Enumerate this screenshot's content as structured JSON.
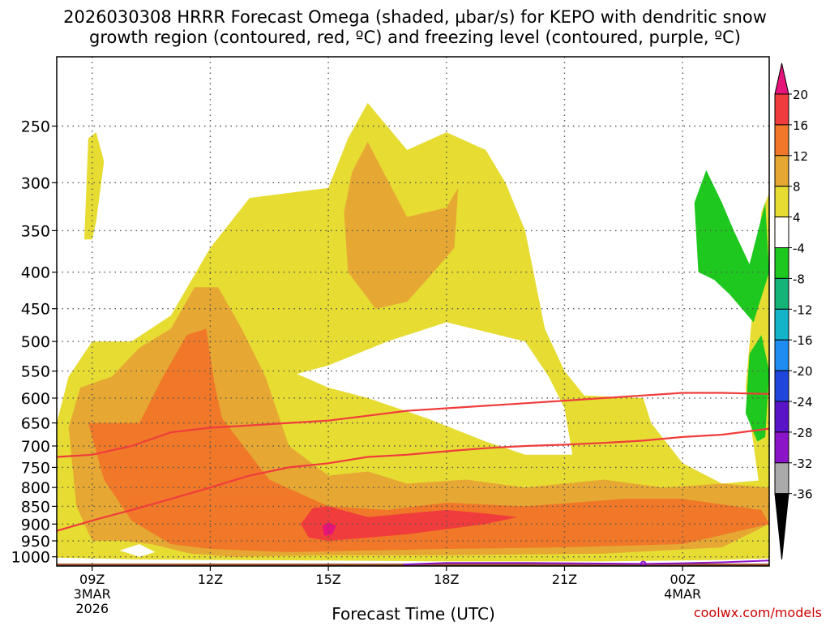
{
  "chart_data": {
    "type": "heatmap",
    "title_lines": [
      "2026030308 HRRR Forecast Omega (shaded, µbar/s) for KEPO with dendritic snow",
      "growth region (contoured, red, ºC) and freezing level (contoured, purple, ºC)"
    ],
    "xlabel": "Forecast Time (UTC)",
    "credit": "coolwx.com/models",
    "x_ticks": [
      {
        "hour": 0,
        "lines": [
          "09Z",
          "3MAR",
          "2026"
        ]
      },
      {
        "hour": 3,
        "lines": [
          "12Z"
        ]
      },
      {
        "hour": 6,
        "lines": [
          "15Z"
        ]
      },
      {
        "hour": 9,
        "lines": [
          "18Z"
        ]
      },
      {
        "hour": 12,
        "lines": [
          "21Z"
        ]
      },
      {
        "hour": 15,
        "lines": [
          "00Z",
          "4MAR"
        ]
      }
    ],
    "x_range_hours": [
      -0.9,
      17.2
    ],
    "y_ticks": [
      250,
      300,
      350,
      400,
      450,
      500,
      550,
      600,
      650,
      700,
      750,
      800,
      850,
      900,
      950,
      1000
    ],
    "y_range_hpa": [
      200,
      1030
    ],
    "y_scale": "log",
    "grid": true,
    "legend_position": "right",
    "colorbar": {
      "labels": [
        "20",
        "16",
        "12",
        "8",
        "4",
        "-4",
        "-8",
        "-12",
        "-16",
        "-20",
        "-24",
        "-28",
        "-32",
        "-36"
      ],
      "band_colors": [
        "#f03c3c",
        "#f07828",
        "#e6a832",
        "#e6dc32",
        "#ffffff",
        "#1ec81e",
        "#14b478",
        "#14b4c8",
        "#1e8cf0",
        "#1e46dc",
        "#5a14c8",
        "#8c14c8",
        "#aaaaaa"
      ],
      "top_arrow_color": "#e6147a",
      "bottom_arrow_color": "#000000"
    },
    "omega_regions": [
      {
        "value_class": "4 to 8",
        "color": "#e6dc32",
        "points": [
          [
            -0.9,
            650
          ],
          [
            -0.6,
            560
          ],
          [
            0,
            500
          ],
          [
            1,
            500
          ],
          [
            2,
            460
          ],
          [
            3,
            370
          ],
          [
            4,
            315
          ],
          [
            6,
            305
          ],
          [
            6.5,
            260
          ],
          [
            7,
            232
          ],
          [
            8,
            270
          ],
          [
            9,
            255
          ],
          [
            10,
            270
          ],
          [
            10.5,
            300
          ],
          [
            11,
            350
          ],
          [
            11.5,
            480
          ],
          [
            12,
            550
          ],
          [
            12.5,
            595
          ],
          [
            14,
            600
          ],
          [
            14.2,
            650
          ],
          [
            15,
            740
          ],
          [
            16,
            790
          ],
          [
            17.2,
            780
          ],
          [
            17.2,
            1005
          ],
          [
            16,
            1010
          ],
          [
            13,
            1015
          ],
          [
            9,
            1015
          ],
          [
            6,
            1012
          ],
          [
            3,
            1010
          ],
          [
            1,
            1008
          ],
          [
            -0.9,
            1003
          ]
        ]
      },
      {
        "value_class": "4 to 8",
        "color": "#e6dc32",
        "points": [
          [
            -0.2,
            360
          ],
          [
            -0.1,
            260
          ],
          [
            0.1,
            255
          ],
          [
            0.3,
            280
          ],
          [
            0.1,
            340
          ],
          [
            0,
            360
          ]
        ]
      },
      {
        "value_class": "4 to 8",
        "color": "#e6dc32",
        "points": [
          [
            16.6,
            580
          ],
          [
            17,
            330
          ],
          [
            17.2,
            310
          ],
          [
            17.2,
            1003
          ]
        ]
      },
      {
        "value_class": "-4 to 4",
        "color": "#ffffff",
        "points": [
          [
            5.2,
            555
          ],
          [
            6,
            540
          ],
          [
            7.5,
            500
          ],
          [
            9,
            470
          ],
          [
            11,
            500
          ],
          [
            11.6,
            560
          ],
          [
            12,
            620
          ],
          [
            12.2,
            720
          ],
          [
            11,
            720
          ],
          [
            10,
            690
          ],
          [
            8.5,
            640
          ],
          [
            7,
            600
          ],
          [
            6,
            580
          ]
        ]
      },
      {
        "value_class": "-4 to 4",
        "color": "#ffffff",
        "points": [
          [
            0.7,
            980
          ],
          [
            1.2,
            960
          ],
          [
            1.6,
            985
          ],
          [
            1.2,
            1000
          ]
        ]
      },
      {
        "value_class": "8 to 12",
        "color": "#e6a832",
        "points": [
          [
            -0.6,
            660
          ],
          [
            -0.3,
            580
          ],
          [
            0.5,
            560
          ],
          [
            1.2,
            510
          ],
          [
            2,
            480
          ],
          [
            2.6,
            420
          ],
          [
            3.2,
            420
          ],
          [
            3.8,
            480
          ],
          [
            4.4,
            560
          ],
          [
            5,
            700
          ],
          [
            6,
            770
          ],
          [
            7,
            760
          ],
          [
            8,
            790
          ],
          [
            9.5,
            780
          ],
          [
            11,
            800
          ],
          [
            13,
            780
          ],
          [
            14.5,
            800
          ],
          [
            16,
            790
          ],
          [
            17.2,
            800
          ],
          [
            17.2,
            900
          ],
          [
            16,
            970
          ],
          [
            13,
            990
          ],
          [
            9,
            995
          ],
          [
            6,
            995
          ],
          [
            3.6,
            1000
          ],
          [
            2.5,
            990
          ],
          [
            1.5,
            960
          ],
          [
            0.8,
            950
          ],
          [
            0,
            950
          ],
          [
            -0.4,
            850
          ]
        ]
      },
      {
        "value_class": "8 to 12",
        "color": "#e6a832",
        "points": [
          [
            7.2,
            450
          ],
          [
            6.5,
            400
          ],
          [
            6.4,
            330
          ],
          [
            6.6,
            290
          ],
          [
            7,
            263
          ],
          [
            7.4,
            290
          ],
          [
            8,
            335
          ],
          [
            9,
            325
          ],
          [
            9.3,
            305
          ],
          [
            9.2,
            370
          ],
          [
            8.5,
            410
          ],
          [
            8,
            440
          ]
        ]
      },
      {
        "value_class": "12 to 16",
        "color": "#f07828",
        "points": [
          [
            -0.1,
            650
          ],
          [
            0.5,
            650
          ],
          [
            1.2,
            650
          ],
          [
            1.8,
            560
          ],
          [
            2.4,
            490
          ],
          [
            2.9,
            480
          ],
          [
            3.1,
            570
          ],
          [
            3.3,
            640
          ],
          [
            4.5,
            780
          ],
          [
            6,
            850
          ],
          [
            7.5,
            860
          ],
          [
            9,
            840
          ],
          [
            11,
            850
          ],
          [
            13.5,
            830
          ],
          [
            15,
            830
          ],
          [
            17,
            860
          ],
          [
            17.2,
            900
          ],
          [
            15,
            960
          ],
          [
            12,
            970
          ],
          [
            9,
            975
          ],
          [
            7,
            980
          ],
          [
            5,
            985
          ],
          [
            3,
            975
          ],
          [
            2,
            960
          ],
          [
            1,
            890
          ],
          [
            0.3,
            780
          ]
        ]
      },
      {
        "value_class": "16 to 20",
        "color": "#f03c3c",
        "points": [
          [
            5.3,
            900
          ],
          [
            5.6,
            855
          ],
          [
            6,
            850
          ],
          [
            7,
            880
          ],
          [
            8,
            870
          ],
          [
            9,
            860
          ],
          [
            10,
            870
          ],
          [
            10.8,
            880
          ],
          [
            10,
            900
          ],
          [
            8,
            930
          ],
          [
            7,
            940
          ],
          [
            6,
            950
          ],
          [
            5.5,
            940
          ]
        ]
      },
      {
        "value_class": "> 20",
        "color": "#e6147a",
        "points": [
          [
            5.85,
            905
          ],
          [
            6,
            895
          ],
          [
            6.2,
            905
          ],
          [
            6.1,
            930
          ],
          [
            5.9,
            935
          ]
        ]
      },
      {
        "value_class": "-4 to -8",
        "color": "#1ec81e",
        "points": [
          [
            15.4,
            400
          ],
          [
            15.3,
            320
          ],
          [
            15.6,
            288
          ],
          [
            16,
            320
          ],
          [
            16.3,
            350
          ],
          [
            16.7,
            390
          ],
          [
            17.1,
            320
          ],
          [
            17.2,
            400
          ],
          [
            16.8,
            470
          ],
          [
            16.2,
            430
          ],
          [
            15.8,
            410
          ]
        ]
      },
      {
        "value_class": "-4 to -8",
        "color": "#1ec81e",
        "points": [
          [
            16.6,
            630
          ],
          [
            16.7,
            520
          ],
          [
            17,
            490
          ],
          [
            17.2,
            550
          ],
          [
            17.1,
            680
          ],
          [
            16.9,
            690
          ]
        ]
      }
    ],
    "dendritic_growth_contours": [
      {
        "color": "#f03c3c",
        "points": [
          [
            -0.9,
            725
          ],
          [
            0,
            720
          ],
          [
            1,
            700
          ],
          [
            2,
            670
          ],
          [
            3,
            660
          ],
          [
            4,
            655
          ],
          [
            5,
            650
          ],
          [
            6,
            645
          ],
          [
            7,
            635
          ],
          [
            8,
            625
          ],
          [
            9,
            620
          ],
          [
            10,
            615
          ],
          [
            11,
            610
          ],
          [
            12,
            605
          ],
          [
            13,
            600
          ],
          [
            14,
            595
          ],
          [
            15,
            590
          ],
          [
            16,
            590
          ],
          [
            17.2,
            592
          ]
        ]
      },
      {
        "color": "#f03c3c",
        "points": [
          [
            -0.9,
            920
          ],
          [
            0,
            890
          ],
          [
            1,
            860
          ],
          [
            2,
            830
          ],
          [
            3,
            800
          ],
          [
            4,
            770
          ],
          [
            5,
            750
          ],
          [
            6,
            740
          ],
          [
            7,
            725
          ],
          [
            8,
            720
          ],
          [
            9,
            712
          ],
          [
            10,
            705
          ],
          [
            11,
            700
          ],
          [
            12,
            697
          ],
          [
            13,
            693
          ],
          [
            14,
            688
          ],
          [
            15,
            680
          ],
          [
            16,
            675
          ],
          [
            17.2,
            662
          ]
        ]
      }
    ],
    "freezing_level_contour": {
      "color": "#8c14c8",
      "label": "0",
      "points": [
        [
          7.9,
          1025
        ],
        [
          9,
          1020
        ],
        [
          11,
          1020
        ],
        [
          13,
          1022
        ],
        [
          14,
          1023
        ],
        [
          15,
          1021
        ],
        [
          16,
          1018
        ],
        [
          17.2,
          1012
        ]
      ]
    },
    "terrain_color": "#a0522d"
  }
}
